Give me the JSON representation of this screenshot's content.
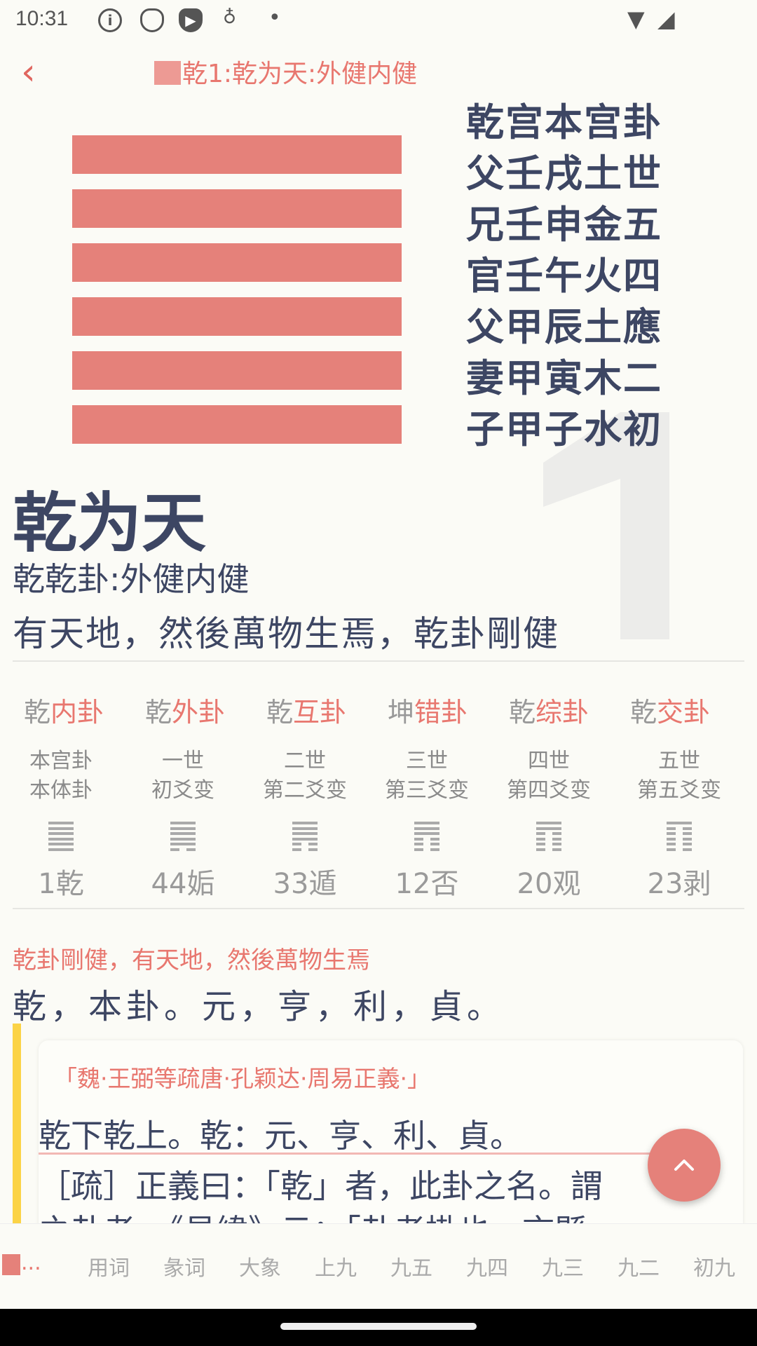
{
  "status": {
    "time": "10:31"
  },
  "header": {
    "title": "乾1:乾为天:外健内健"
  },
  "hexagram": {
    "lines": [
      "yang",
      "yang",
      "yang",
      "yang",
      "yang",
      "yang"
    ],
    "yao_labels": [
      "乾宫本宫卦",
      "父壬戌土世",
      "兄壬申金五",
      "官壬午火四",
      "父甲辰土應",
      "妻甲寅木二",
      "子甲子水初"
    ],
    "number": "1"
  },
  "gua": {
    "name": "乾为天",
    "subtitle": "乾乾卦:外健内健",
    "summary": "有天地，然後萬物生焉，乾卦剛健"
  },
  "relations": [
    {
      "g": "乾",
      "t": "内卦"
    },
    {
      "g": "乾",
      "t": "外卦"
    },
    {
      "g": "乾",
      "t": "互卦"
    },
    {
      "g": "坤",
      "t": "错卦"
    },
    {
      "g": "乾",
      "t": "综卦"
    },
    {
      "g": "乾",
      "t": "交卦"
    }
  ],
  "changes": [
    {
      "a": "本宫卦",
      "b": "本体卦",
      "num": "1乾",
      "yao": [
        1,
        1,
        1,
        1,
        1,
        1
      ]
    },
    {
      "a": "一世",
      "b": "初爻变",
      "num": "44姤",
      "yao": [
        1,
        1,
        1,
        1,
        1,
        0
      ]
    },
    {
      "a": "二世",
      "b": "第二爻变",
      "num": "33遁",
      "yao": [
        1,
        1,
        1,
        1,
        0,
        0
      ]
    },
    {
      "a": "三世",
      "b": "第三爻变",
      "num": "12否",
      "yao": [
        1,
        1,
        1,
        0,
        0,
        0
      ]
    },
    {
      "a": "四世",
      "b": "第四爻变",
      "num": "20观",
      "yao": [
        1,
        1,
        0,
        0,
        0,
        0
      ]
    },
    {
      "a": "五世",
      "b": "第五爻变",
      "num": "23剥",
      "yao": [
        1,
        0,
        0,
        0,
        0,
        0
      ]
    }
  ],
  "text": {
    "red": "乾卦剛健，有天地，然後萬物生焉",
    "main": "乾，本卦。元，亨，利，貞。",
    "cite": "「魏·王弼等疏唐·孔颖达·周易正義·」",
    "l1": "乾下乾上。乾：元、亨、利、貞。",
    "l2": "［疏］正義曰：「乾」者，此卦之名。謂",
    "l3": "之卦者，《易緯》云：「卦者掛也，言縣"
  },
  "tabs": [
    "...",
    "用词",
    "彖词",
    "大象",
    "上九",
    "九五",
    "九四",
    "九三",
    "九二",
    "初九"
  ],
  "colors": {
    "accent": "#e8776f",
    "bar": "#e5817a",
    "text": "#3d4663",
    "quote_bar": "#fbd346"
  }
}
